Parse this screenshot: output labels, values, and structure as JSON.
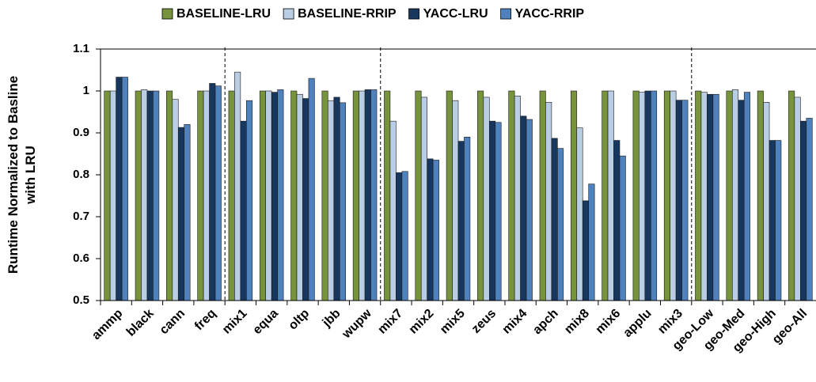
{
  "chart_data": {
    "type": "bar",
    "y_label": [
      "Runtime Normalized to Basline",
      "with LRU"
    ],
    "categories": [
      "ammp",
      "black",
      "cann",
      "freq",
      "mix1",
      "equa",
      "oltp",
      "jbb",
      "wupw",
      "mix7",
      "mix2",
      "mix5",
      "zeus",
      "mix4",
      "apch",
      "mix8",
      "mix6",
      "applu",
      "mix3",
      "geo-Low",
      "geo-Med",
      "geo-High",
      "geo-All"
    ],
    "series": [
      {
        "name": "BASELINE-LRU",
        "color": "#77933c",
        "values": [
          1,
          1,
          1,
          1,
          1,
          1,
          1,
          1,
          1,
          1,
          1,
          1,
          1,
          1,
          1,
          1,
          1,
          1,
          1,
          1,
          1,
          1,
          1
        ]
      },
      {
        "name": "BASELINE-RRIP",
        "color": "#b9cde5",
        "values": [
          1,
          1.003,
          0.98,
          1,
          1.045,
          1,
          0.992,
          0.977,
          1,
          0.928,
          0.985,
          0.977,
          0.985,
          0.988,
          0.973,
          0.912,
          1,
          0.997,
          1,
          0.997,
          1.003,
          0.973,
          0.985
        ]
      },
      {
        "name": "YACC-LRU",
        "color": "#17375e",
        "values": [
          1.033,
          1,
          0.913,
          1.018,
          0.928,
          0.997,
          0.982,
          0.985,
          1.003,
          0.805,
          0.838,
          0.88,
          0.928,
          0.94,
          0.887,
          0.738,
          0.882,
          1,
          0.978,
          0.992,
          0.978,
          0.882,
          0.928
        ]
      },
      {
        "name": "YACC-RRIP",
        "color": "#4f81bd",
        "values": [
          1.033,
          1,
          0.92,
          1.012,
          0.977,
          1.003,
          1.03,
          0.972,
          1.003,
          0.808,
          0.835,
          0.89,
          0.925,
          0.932,
          0.863,
          0.778,
          0.845,
          1,
          0.978,
          0.992,
          0.997,
          0.882,
          0.935
        ]
      }
    ],
    "ylim": [
      0.5,
      1.1
    ],
    "yticks": [
      0.5,
      0.6,
      0.7,
      0.8,
      0.9,
      1,
      1.1
    ]
  }
}
